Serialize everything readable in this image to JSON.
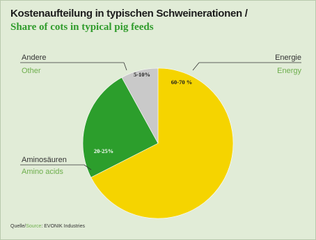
{
  "title": {
    "de": "Kostenaufteilung in typischen Schweinerationen /",
    "en": "Share of cots in typical pig feeds"
  },
  "source": {
    "de": "Quelle",
    "sep": "/",
    "en": "Source",
    "name": ": EVONIK Industries"
  },
  "colors": {
    "energy": "#f5d400",
    "amino": "#2c9e2c",
    "other": "#c9c9c9",
    "background": "#e1ecd7"
  },
  "chart_data": {
    "type": "pie",
    "title": "Kostenaufteilung in typischen Schweinerationen / Share of cots in typical pig feeds",
    "series": [
      {
        "label_de": "Energie",
        "label_en": "Energy",
        "range": "60-70 %",
        "value": 67.5,
        "color": "#f5d400"
      },
      {
        "label_de": "Aminosäuren",
        "label_en": "Amino acids",
        "range": "20-25%",
        "value": 24.5,
        "color": "#2c9e2c"
      },
      {
        "label_de": "Andere",
        "label_en": "Other",
        "range": "5-10%",
        "value": 8,
        "color": "#c9c9c9"
      }
    ]
  }
}
